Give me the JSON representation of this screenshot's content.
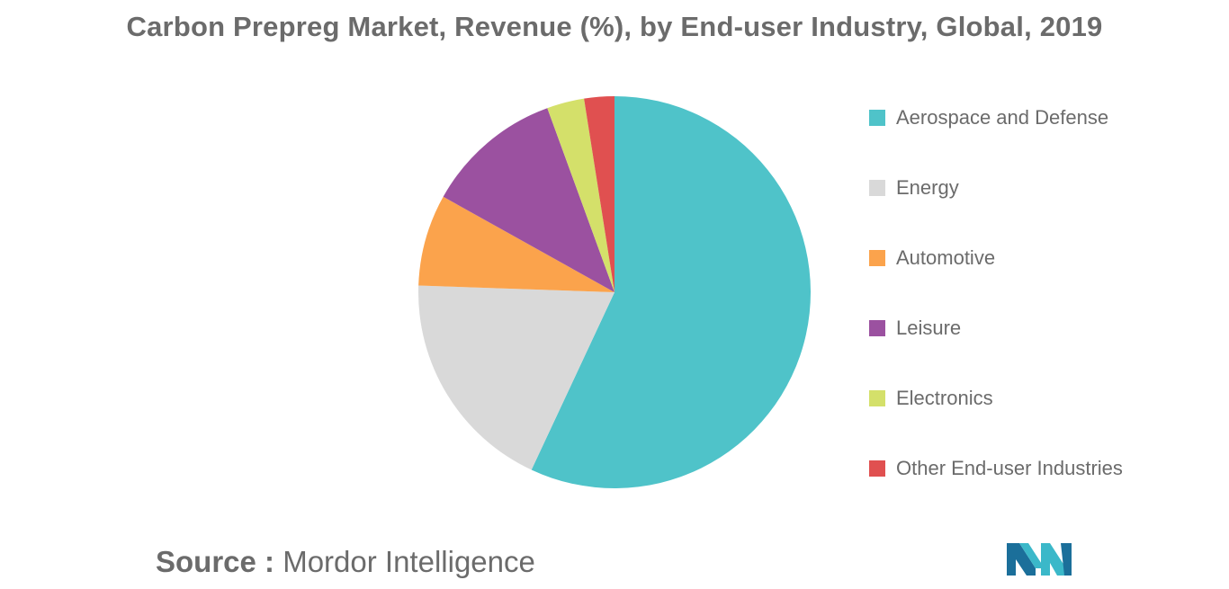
{
  "title": "Carbon Prepreg Market, Revenue (%), by End-user Industry, Global, 2019",
  "source": {
    "label": "Source :",
    "value": "Mordor Intelligence"
  },
  "logo": {
    "icon": "mordor-intelligence-logo",
    "colors": [
      "#1b6f9a",
      "#3bb8c9"
    ]
  },
  "chart_data": {
    "type": "pie",
    "title": "Carbon Prepreg Market, Revenue (%), by End-user Industry, Global, 2019",
    "legend_position": "right",
    "start_angle_deg": 0,
    "direction": "clockwise",
    "slices": [
      {
        "label": "Aerospace and Defense",
        "value": 57.3,
        "color": "#4fc3c9"
      },
      {
        "label": "Energy",
        "value": 18.7,
        "color": "#d9d9d9"
      },
      {
        "label": "Automotive",
        "value": 7.6,
        "color": "#fba34c"
      },
      {
        "label": "Leisure",
        "value": 11.4,
        "color": "#9b51a0"
      },
      {
        "label": "Electronics",
        "value": 3.1,
        "color": "#d4e06a"
      },
      {
        "label": "Other End-user Industries",
        "value": 2.5,
        "color": "#e05050"
      }
    ]
  }
}
